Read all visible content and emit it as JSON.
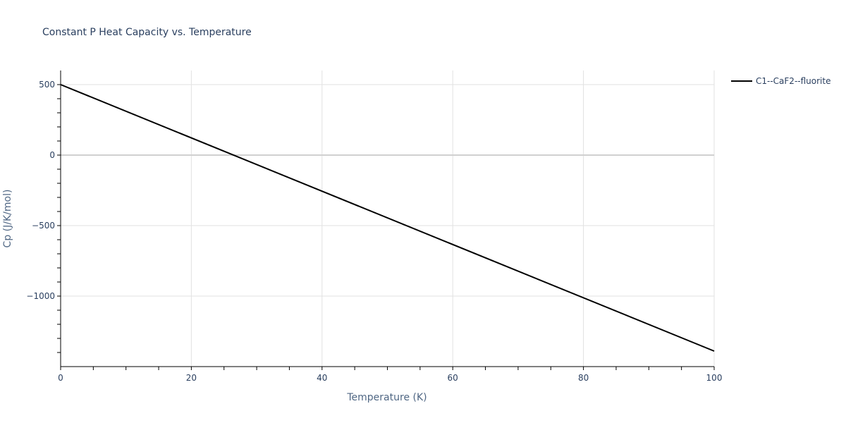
{
  "chart_data": {
    "type": "line",
    "title": "Constant P Heat Capacity vs. Temperature",
    "xlabel": "Temperature (K)",
    "ylabel": "Cp (J/K/mol)",
    "xlim": [
      0,
      100
    ],
    "ylim": [
      -1500,
      600
    ],
    "x_ticks": [
      0,
      20,
      40,
      60,
      80,
      100
    ],
    "x_tick_labels": [
      "0",
      "20",
      "40",
      "60",
      "80",
      "100"
    ],
    "y_ticks": [
      500,
      0,
      -500,
      -1000
    ],
    "y_tick_labels": [
      "500",
      "0",
      "−500",
      "−1000"
    ],
    "grid": true,
    "legend_position": "top-right",
    "series": [
      {
        "name": "C1--CaF2--fluorite",
        "color": "#000000",
        "x": [
          0,
          100
        ],
        "y": [
          500,
          -1390
        ]
      }
    ]
  }
}
